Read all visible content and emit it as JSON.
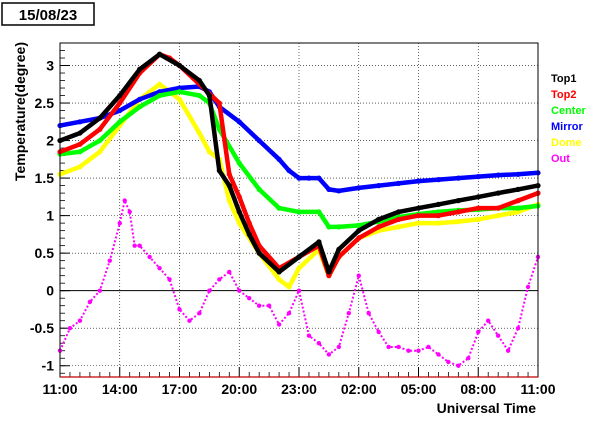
{
  "date_label": "15/08/23",
  "chart_data": {
    "type": "scatter",
    "title": "",
    "xlabel": "Universal Time",
    "ylabel": "Temperature(degree)",
    "xlim": [
      0,
      24
    ],
    "ylim": [
      -1.15,
      3.3
    ],
    "x_ticks": [
      {
        "x": 0,
        "label": "11:00"
      },
      {
        "x": 3,
        "label": "14:00"
      },
      {
        "x": 6,
        "label": "17:00"
      },
      {
        "x": 9,
        "label": "20:00"
      },
      {
        "x": 12,
        "label": "23:00"
      },
      {
        "x": 15,
        "label": "02:00"
      },
      {
        "x": 18,
        "label": "05:00"
      },
      {
        "x": 21,
        "label": "08:00"
      },
      {
        "x": 24,
        "label": "11:00"
      }
    ],
    "y_ticks": [
      {
        "y": -1,
        "label": "-1"
      },
      {
        "y": -0.5,
        "label": "-0.5"
      },
      {
        "y": 0,
        "label": "0"
      },
      {
        "y": 0.5,
        "label": "0.5"
      },
      {
        "y": 1,
        "label": "1"
      },
      {
        "y": 1.5,
        "label": "1.5"
      },
      {
        "y": 2,
        "label": "2"
      },
      {
        "y": 2.5,
        "label": "2.5"
      },
      {
        "y": 3,
        "label": "3"
      }
    ],
    "grid": true,
    "legend_position": "right",
    "series": [
      {
        "name": "Top1",
        "color": "#000000",
        "x": [
          0,
          1,
          2,
          3,
          4,
          5,
          6,
          7,
          7.5,
          8,
          8.5,
          9,
          9.5,
          10,
          11,
          12,
          13,
          13.5,
          14,
          15,
          16,
          17,
          18,
          19,
          20,
          21,
          22,
          23,
          24
        ],
        "y": [
          2.0,
          2.1,
          2.3,
          2.6,
          2.95,
          3.15,
          3.0,
          2.8,
          2.6,
          1.6,
          1.4,
          1.05,
          0.75,
          0.5,
          0.25,
          0.45,
          0.65,
          0.25,
          0.55,
          0.8,
          0.95,
          1.05,
          1.1,
          1.15,
          1.2,
          1.25,
          1.3,
          1.35,
          1.4
        ]
      },
      {
        "name": "Top2",
        "color": "#ff0000",
        "x": [
          0,
          1,
          2,
          3,
          4,
          5,
          5.5,
          6,
          7,
          8,
          8.5,
          9,
          9.5,
          10,
          11,
          12,
          13,
          13.5,
          14,
          15,
          16,
          17,
          18,
          19,
          20,
          21,
          22,
          23,
          24
        ],
        "y": [
          1.85,
          1.95,
          2.15,
          2.5,
          2.9,
          3.15,
          3.1,
          3.0,
          2.75,
          2.5,
          1.55,
          1.25,
          0.9,
          0.6,
          0.3,
          0.45,
          0.6,
          0.2,
          0.45,
          0.7,
          0.85,
          0.95,
          1.0,
          1.0,
          1.05,
          1.1,
          1.1,
          1.2,
          1.3
        ]
      },
      {
        "name": "Center",
        "color": "#00ff00",
        "x": [
          0,
          1,
          2,
          3,
          4,
          5,
          6,
          7,
          7.5,
          8,
          9,
          10,
          11,
          12,
          13,
          13.5,
          14,
          15,
          16,
          17,
          18,
          19,
          20,
          21,
          22,
          23,
          24
        ],
        "y": [
          1.82,
          1.85,
          2.0,
          2.25,
          2.45,
          2.6,
          2.65,
          2.6,
          2.5,
          2.15,
          1.7,
          1.35,
          1.1,
          1.05,
          1.05,
          0.85,
          0.85,
          0.87,
          0.92,
          0.98,
          1.02,
          1.05,
          1.07,
          1.08,
          1.1,
          1.1,
          1.13
        ]
      },
      {
        "name": "Mirror",
        "color": "#0000ff",
        "x": [
          0,
          1,
          2,
          3,
          4,
          5,
          6,
          7,
          7.5,
          8,
          9,
          10,
          11,
          11.5,
          12,
          12.5,
          13,
          13.5,
          14,
          15,
          16,
          17,
          18,
          19,
          20,
          21,
          22,
          23,
          24
        ],
        "y": [
          2.2,
          2.25,
          2.3,
          2.4,
          2.55,
          2.65,
          2.7,
          2.72,
          2.65,
          2.45,
          2.25,
          2.0,
          1.75,
          1.6,
          1.5,
          1.5,
          1.5,
          1.35,
          1.33,
          1.37,
          1.4,
          1.43,
          1.46,
          1.48,
          1.5,
          1.52,
          1.54,
          1.55,
          1.57
        ]
      },
      {
        "name": "Dome",
        "color": "#ffff00",
        "x": [
          0,
          1,
          2,
          3,
          4,
          5,
          6,
          7,
          7.5,
          8,
          8.5,
          9,
          10,
          11,
          11.5,
          12,
          13,
          13.5,
          14,
          15,
          16,
          17,
          18,
          19,
          20,
          21,
          22,
          23,
          24
        ],
        "y": [
          1.55,
          1.65,
          1.85,
          2.2,
          2.55,
          2.75,
          2.55,
          2.1,
          1.85,
          1.75,
          1.2,
          0.9,
          0.5,
          0.15,
          0.05,
          0.3,
          0.55,
          0.2,
          0.45,
          0.7,
          0.8,
          0.85,
          0.9,
          0.9,
          0.92,
          0.95,
          1.0,
          1.05,
          1.15
        ]
      },
      {
        "name": "Out",
        "color": "#ff00ff",
        "x": [
          0,
          0.5,
          1,
          1.5,
          2,
          2.5,
          3,
          3.25,
          3.5,
          3.75,
          4,
          4.5,
          5,
          5.5,
          6,
          6.5,
          7,
          7.5,
          8,
          8.5,
          9,
          9.5,
          10,
          10.5,
          11,
          11.5,
          12,
          12.5,
          13,
          13.5,
          14,
          14.5,
          15,
          15.5,
          16,
          16.5,
          17,
          17.5,
          18,
          18.5,
          19,
          19.5,
          20,
          20.5,
          21,
          21.5,
          22,
          22.5,
          23,
          23.5,
          24
        ],
        "y": [
          -0.8,
          -0.5,
          -0.4,
          -0.15,
          0.0,
          0.4,
          0.9,
          1.2,
          1.05,
          0.6,
          0.6,
          0.45,
          0.3,
          0.15,
          -0.25,
          -0.4,
          -0.3,
          0.0,
          0.15,
          0.25,
          0.0,
          -0.1,
          -0.2,
          -0.2,
          -0.45,
          -0.3,
          0.0,
          -0.6,
          -0.7,
          -0.85,
          -0.75,
          -0.3,
          0.2,
          -0.3,
          -0.55,
          -0.75,
          -0.75,
          -0.8,
          -0.8,
          -0.75,
          -0.85,
          -0.95,
          -1.0,
          -0.9,
          -0.55,
          -0.4,
          -0.6,
          -0.8,
          -0.5,
          0.05,
          0.45
        ]
      }
    ]
  }
}
